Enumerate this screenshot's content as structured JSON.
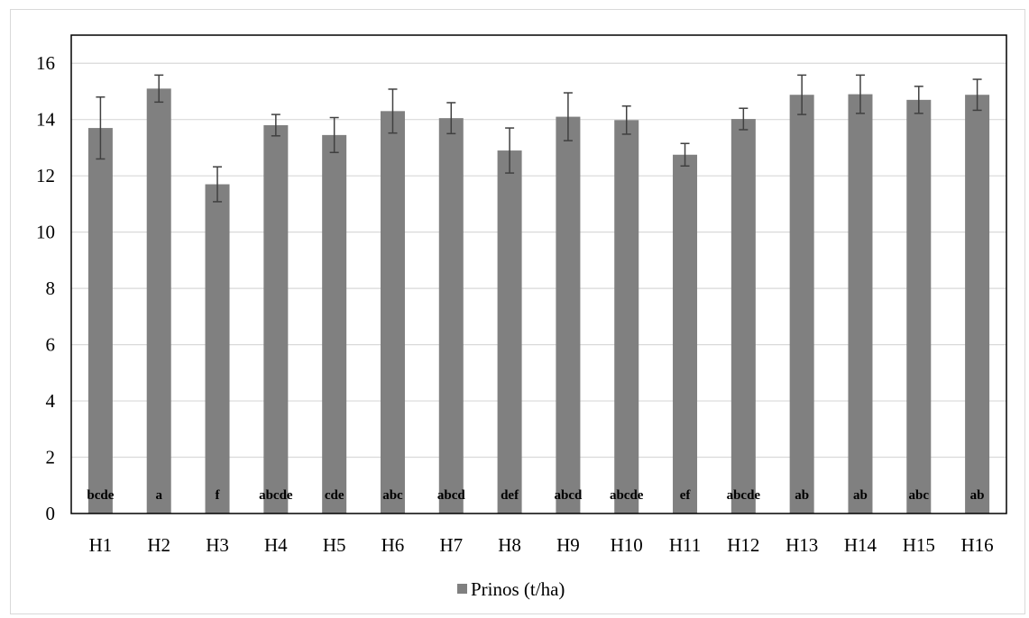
{
  "chart_data": {
    "type": "bar",
    "categories": [
      "H1",
      "H2",
      "H3",
      "H4",
      "H5",
      "H6",
      "H7",
      "H8",
      "H9",
      "H10",
      "H11",
      "H12",
      "H13",
      "H14",
      "H15",
      "H16"
    ],
    "series": [
      {
        "name": "Prinos (t/ha)",
        "values": [
          13.7,
          15.1,
          11.7,
          13.8,
          13.45,
          14.3,
          14.05,
          12.9,
          14.1,
          13.98,
          12.75,
          14.02,
          14.88,
          14.9,
          14.7,
          14.88
        ],
        "errors": [
          1.1,
          0.48,
          0.62,
          0.38,
          0.62,
          0.78,
          0.55,
          0.8,
          0.85,
          0.5,
          0.4,
          0.38,
          0.7,
          0.68,
          0.48,
          0.55
        ],
        "color": "#808080"
      }
    ],
    "significance_letters": [
      "bcde",
      "a",
      "f",
      "abcde",
      "cde",
      "abc",
      "abcd",
      "def",
      "abcd",
      "abcde",
      "ef",
      "abcde",
      "ab",
      "ab",
      "abc",
      "ab"
    ],
    "yticks": [
      "0",
      "2",
      "4",
      "6",
      "8",
      "10",
      "12",
      "14",
      "16"
    ],
    "ylim": [
      0,
      17
    ],
    "grid": true,
    "legend_position": "bottom",
    "title": "",
    "xlabel": "",
    "ylabel": ""
  }
}
